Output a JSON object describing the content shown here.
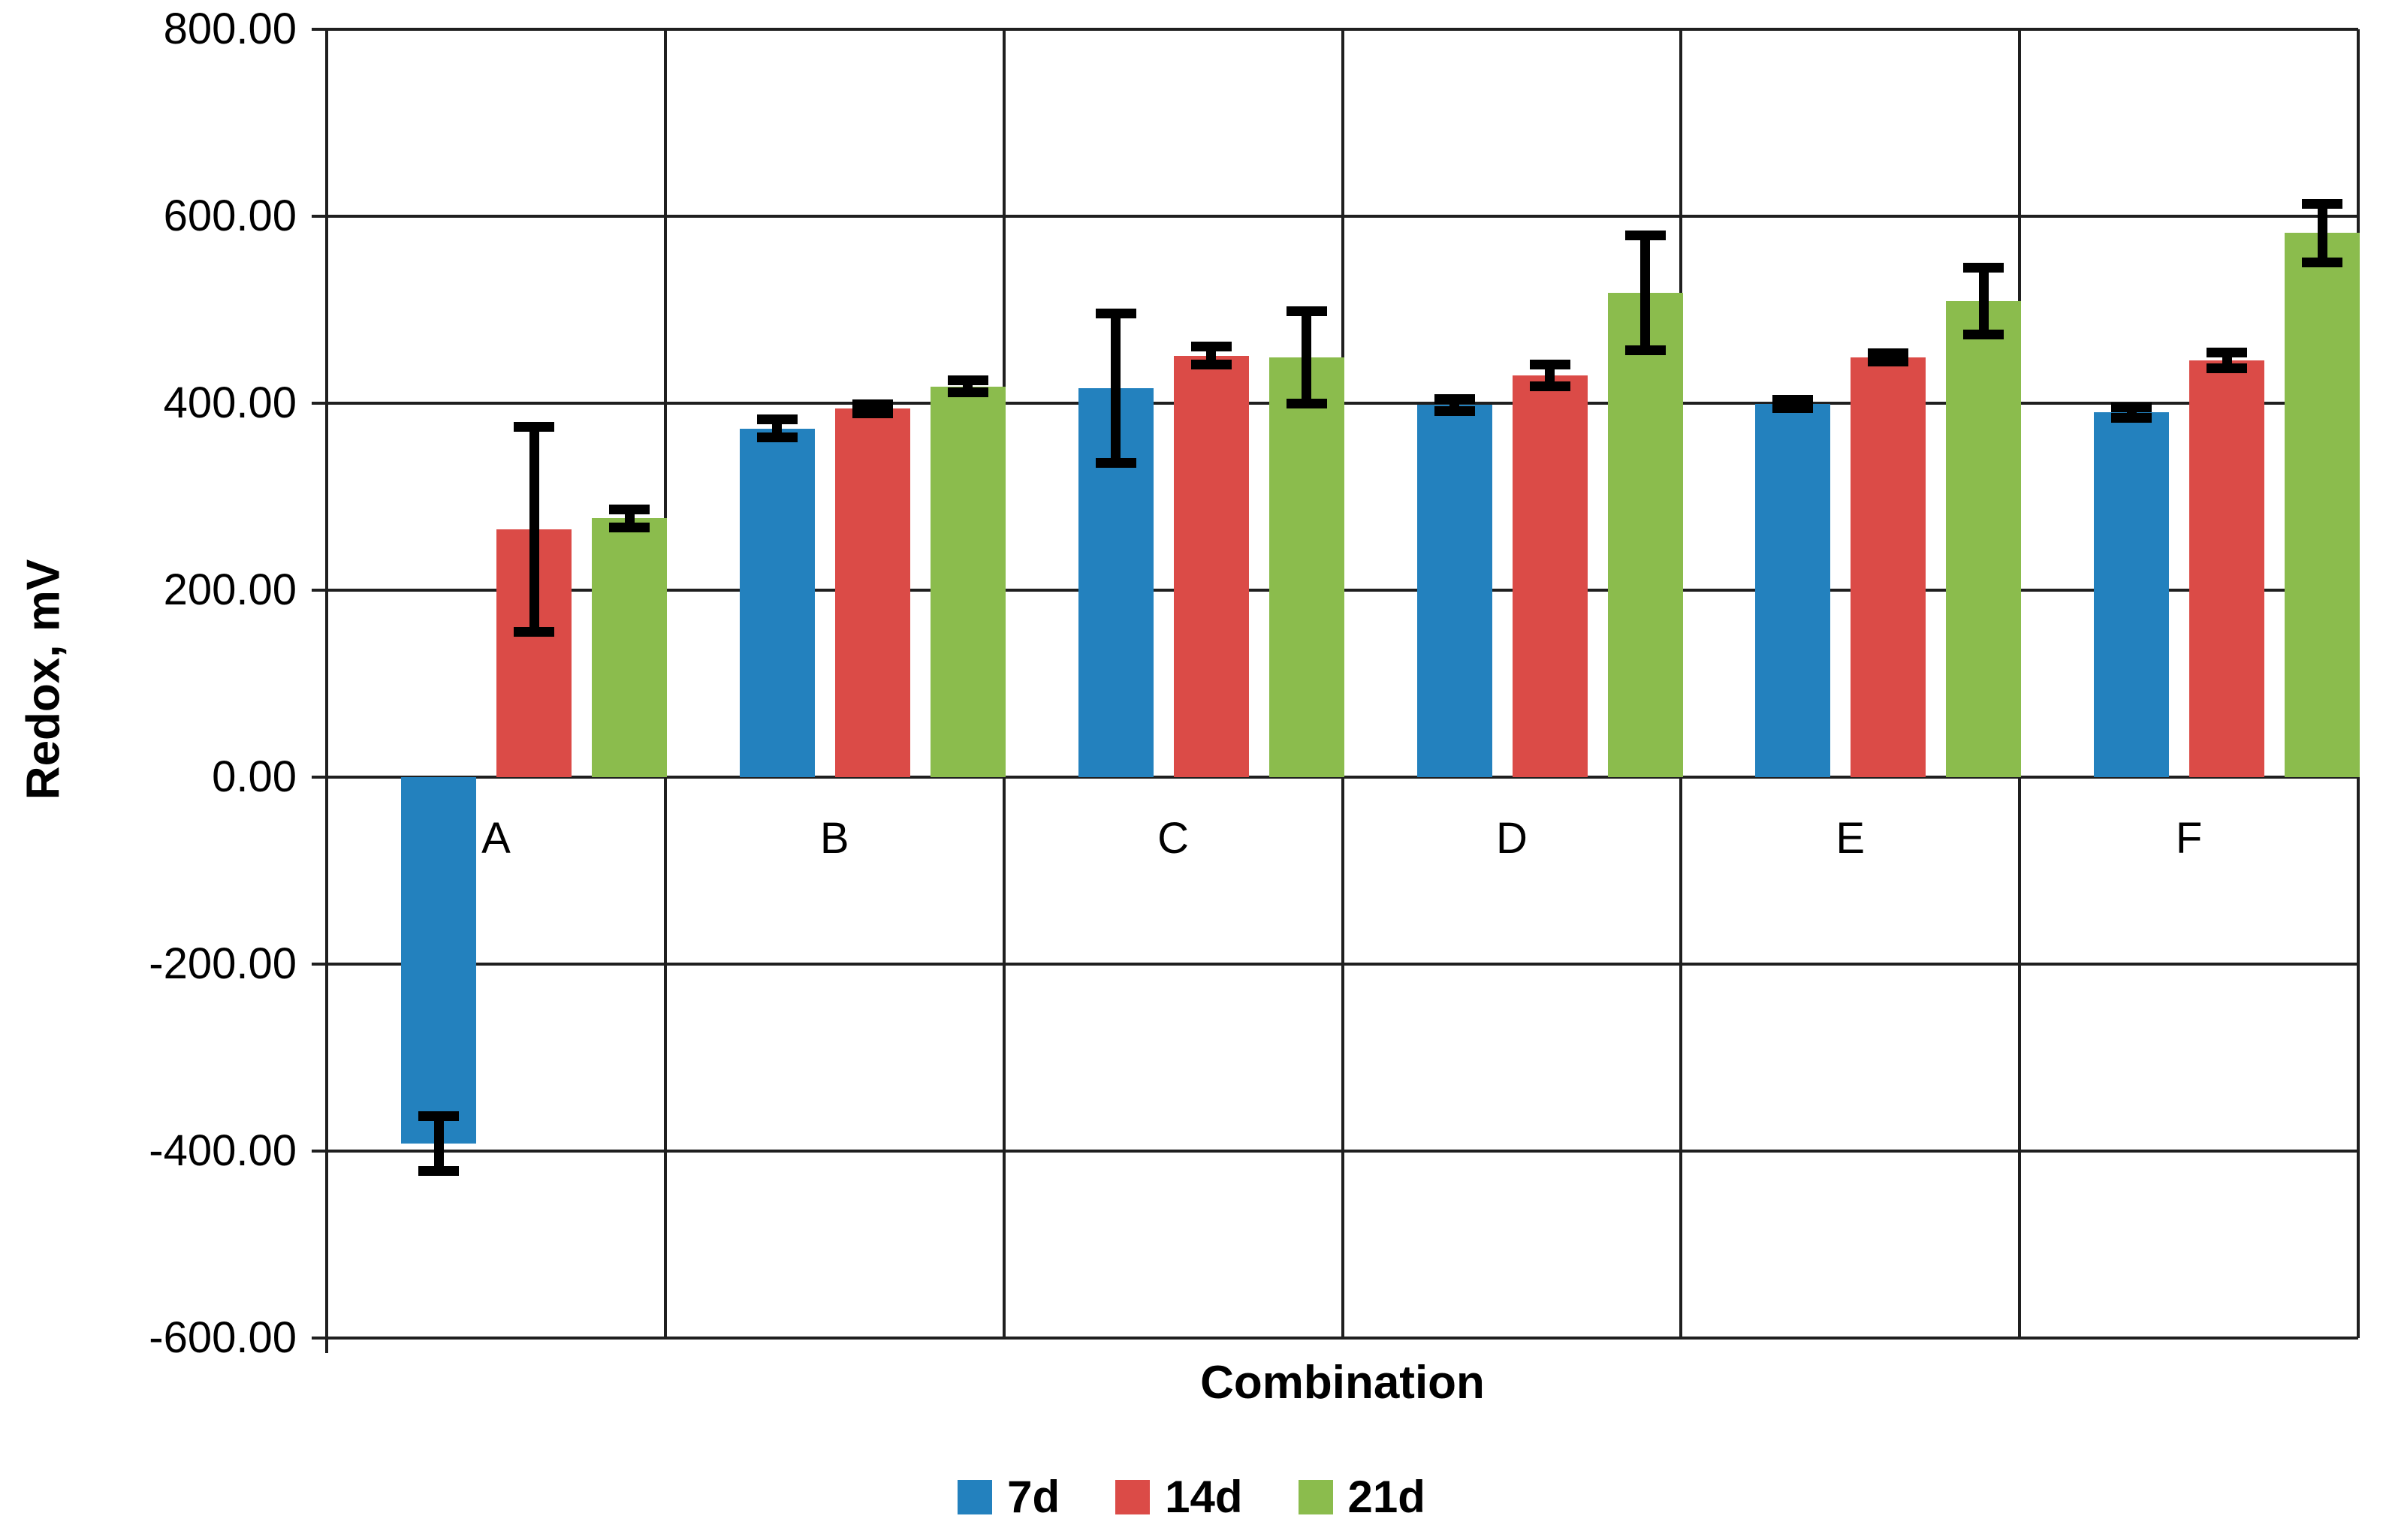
{
  "figure": {
    "background": "#ffffff"
  },
  "chart_data": {
    "type": "bar",
    "title": "",
    "xlabel": "Combination",
    "ylabel": "Redox, mV",
    "categories": [
      "A",
      "B",
      "C",
      "D",
      "E",
      "F"
    ],
    "series": [
      {
        "name": "7d",
        "color": "#2381BE",
        "values": [
          -392,
          373,
          416,
          398,
          399,
          390
        ],
        "errors": [
          30,
          10,
          80,
          7,
          5,
          6
        ]
      },
      {
        "name": "14d",
        "color": "#DB4B47",
        "values": [
          265,
          394,
          451,
          430,
          449,
          446
        ],
        "errors": [
          110,
          5,
          10,
          12,
          5,
          9
        ]
      },
      {
        "name": "21d",
        "color": "#8BBC4D",
        "values": [
          277,
          418,
          449,
          518,
          509,
          582
        ],
        "errors": [
          10,
          7,
          50,
          62,
          36,
          32
        ]
      }
    ],
    "ylim": [
      -600,
      800
    ],
    "ytick_step": 200,
    "ytick_values": [
      800,
      600,
      400,
      200,
      0,
      -200,
      -400,
      -600
    ],
    "ytick_labels": [
      "800.00",
      "600.00",
      "400.00",
      "200.00",
      "0.00",
      "-200.00",
      "-400.00",
      "-600.00"
    ],
    "grid": "both",
    "legend_position": "bottom",
    "legend_labels": [
      "7d",
      "14d",
      "21d"
    ],
    "gridline_color": "#1f1f1f",
    "error_bar_color": "#000000"
  }
}
